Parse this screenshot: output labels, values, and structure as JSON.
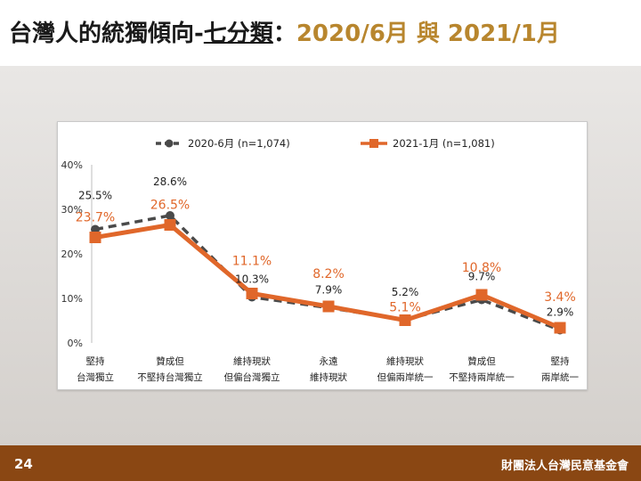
{
  "slide": {
    "title_part1": "台灣人的統獨傾向-",
    "title_underlined": "七分類",
    "title_colon": "：",
    "title_accent1": "2020/6月",
    "title_mid": " 與 ",
    "title_accent2": "2021/1月",
    "page_number": "24",
    "org": "財團法人台灣民意基金會"
  },
  "chart_data": {
    "type": "line",
    "categories": [
      [
        "堅持",
        "台灣獨立"
      ],
      [
        "贊成但",
        "不堅持台灣獨立"
      ],
      [
        "維持現狀",
        "但偏台灣獨立"
      ],
      [
        "永遠",
        "維持現狀"
      ],
      [
        "維持現狀",
        "但偏兩岸統一"
      ],
      [
        "贊成但",
        "不堅持兩岸統一"
      ],
      [
        "堅持",
        "兩岸統一"
      ]
    ],
    "ylim": [
      0,
      40
    ],
    "yticks": [
      "0%",
      "10%",
      "20%",
      "30%",
      "40%"
    ],
    "grid": false,
    "legend_position": "top",
    "series": [
      {
        "name": "2020-6月 (n=1,074)",
        "values": [
          25.5,
          28.6,
          10.3,
          7.9,
          5.2,
          9.7,
          2.9
        ],
        "labels": [
          "25.5%",
          "28.6%",
          "10.3%",
          "7.9%",
          "5.2%",
          "9.7%",
          "2.9%"
        ],
        "color": "#4a4a4a",
        "style": "dashed"
      },
      {
        "name": "2021-1月 (n=1,081)",
        "values": [
          23.7,
          26.5,
          11.1,
          8.2,
          5.1,
          10.8,
          3.4
        ],
        "labels": [
          "23.7%",
          "26.5%",
          "11.1%",
          "8.2%",
          "5.1%",
          "10.8%",
          "3.4%"
        ],
        "color": "#e0672a",
        "style": "solid"
      }
    ]
  }
}
